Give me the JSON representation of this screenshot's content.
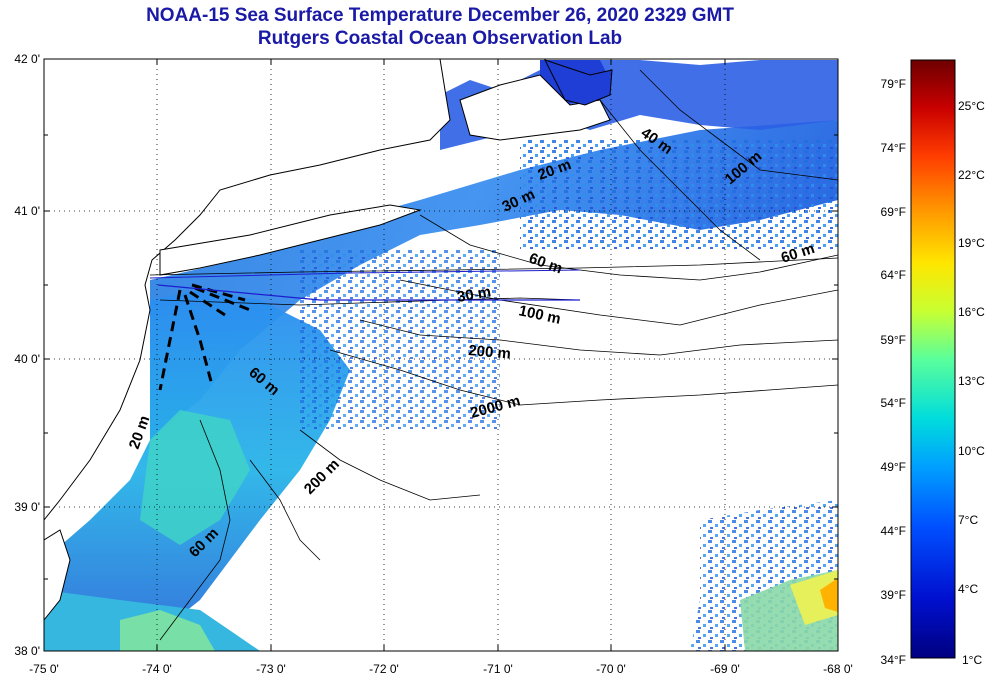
{
  "title_line1": "NOAA-15 Sea Surface Temperature December 26, 2020 2329 GMT",
  "title_line2": "Rutgers Coastal Ocean Observation Lab",
  "lat_labels": [
    "42 0'",
    "41 0'",
    "40 0'",
    "39 0'",
    "38 0'"
  ],
  "lon_labels": [
    "-75 0'",
    "-74 0'",
    "-73 0'",
    "-72 0'",
    "-71 0'",
    "-70 0'",
    "-69 0'",
    "-68 0'"
  ],
  "contour_labels": [
    "40 m",
    "20 m",
    "30 m",
    "100 m",
    "60 m",
    "60 m",
    "30 m",
    "100 m",
    "200 m",
    "60 m",
    "2000 m",
    "200 m",
    "60 m",
    "20 m"
  ],
  "colorbar": {
    "fahrenheit": [
      "79°F",
      "74°F",
      "69°F",
      "64°F",
      "59°F",
      "54°F",
      "49°F",
      "44°F",
      "39°F",
      "34°F"
    ],
    "celsius": [
      "25°C",
      "22°C",
      "19°C",
      "16°C",
      "13°C",
      "10°C",
      "7°C",
      "4°C",
      "1°C"
    ],
    "colors": [
      "#6e0000",
      "#c80000",
      "#ff3c00",
      "#ff9600",
      "#ffe600",
      "#c8ff32",
      "#5aff9b",
      "#00dcdc",
      "#00a0ff",
      "#0050ff",
      "#0010d0",
      "#000080"
    ]
  },
  "colors": {
    "title": "#1a1aa6",
    "land": "#ffffff",
    "coast": "#000000",
    "grid": "#000000"
  }
}
